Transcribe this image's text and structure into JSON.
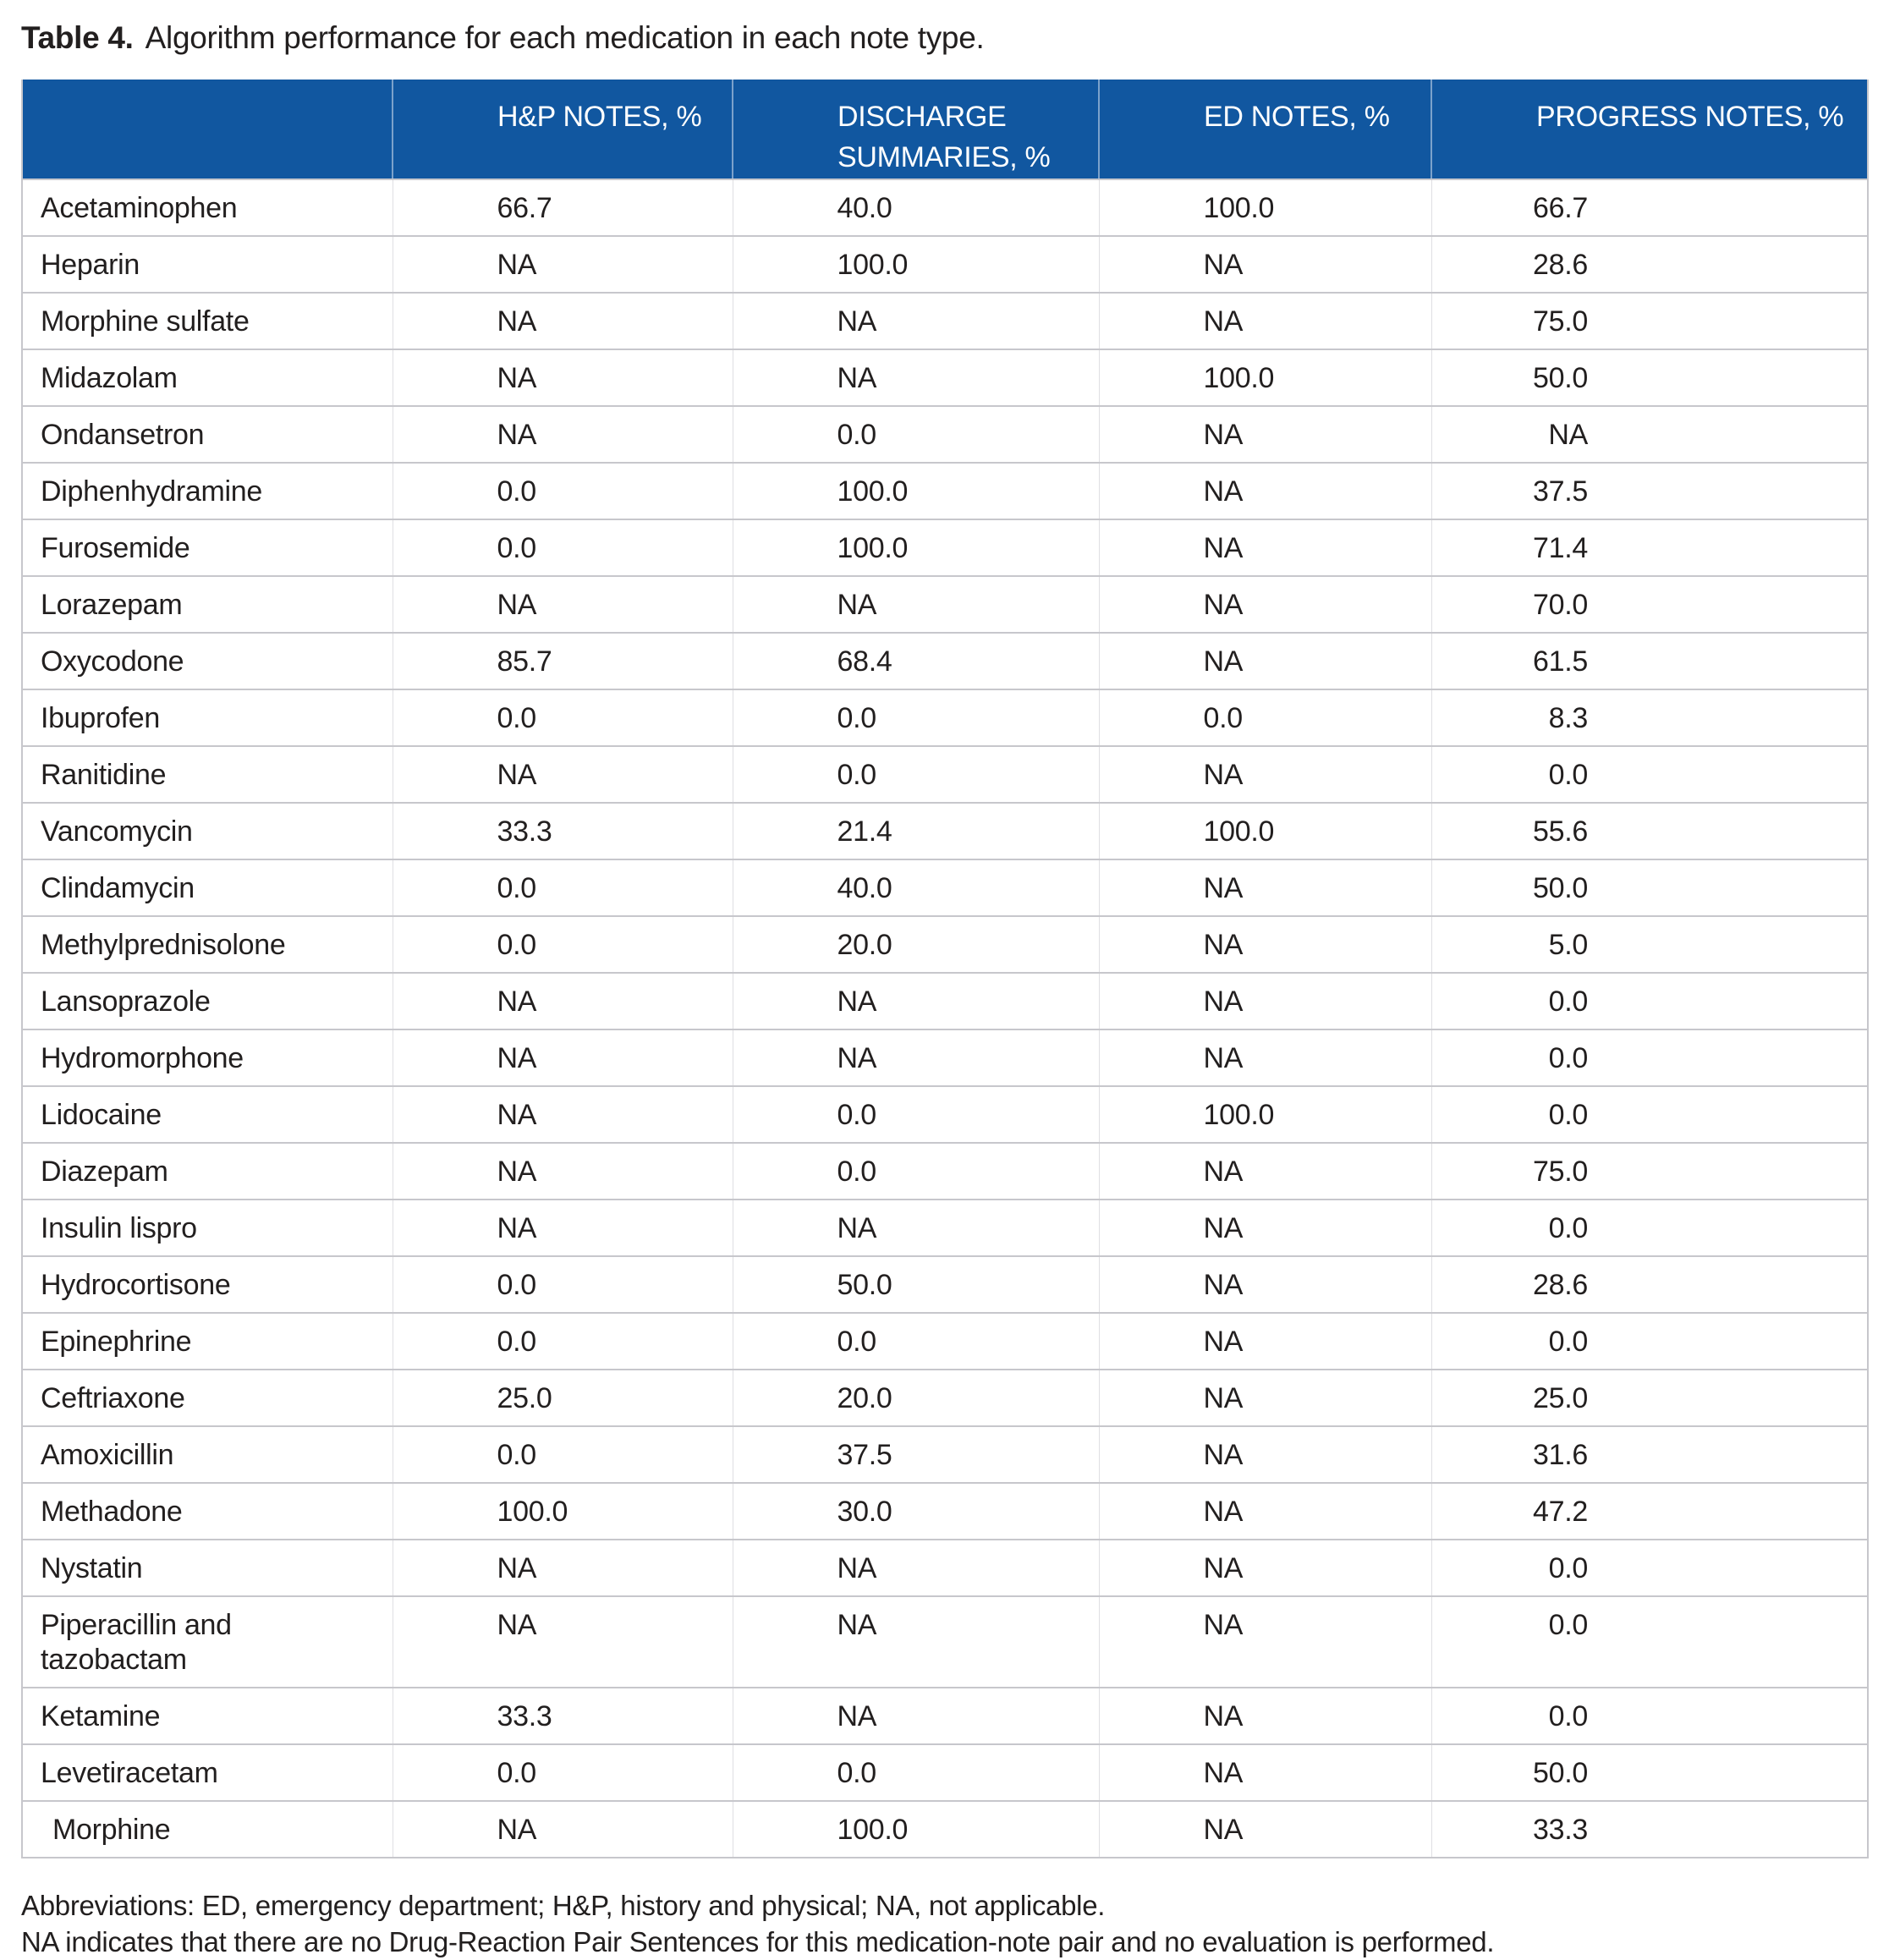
{
  "title": {
    "label": "Table 4.",
    "text": "Algorithm performance for each medication in each note type."
  },
  "colors": {
    "header_background": "#1157a0",
    "header_text": "#ffffff",
    "row_border": "#c7c7cc",
    "body_text": "#221f1f"
  },
  "table": {
    "columns": [
      "",
      "H&P NOTES, %",
      "DISCHARGE SUMMARIES, %",
      "ED NOTES, %",
      "PROGRESS NOTES, %"
    ],
    "rows": [
      {
        "med": "Acetaminophen",
        "hp": "66.7",
        "ds": "40.0",
        "ed": "100.0",
        "pn": "66.7"
      },
      {
        "med": "Heparin",
        "hp": "NA",
        "ds": "100.0",
        "ed": "NA",
        "pn": "28.6"
      },
      {
        "med": "Morphine sulfate",
        "hp": "NA",
        "ds": "NA",
        "ed": "NA",
        "pn": "75.0"
      },
      {
        "med": "Midazolam",
        "hp": "NA",
        "ds": "NA",
        "ed": "100.0",
        "pn": "50.0"
      },
      {
        "med": "Ondansetron",
        "hp": "NA",
        "ds": "0.0",
        "ed": "NA",
        "pn": "NA"
      },
      {
        "med": "Diphenhydramine",
        "hp": "0.0",
        "ds": "100.0",
        "ed": "NA",
        "pn": "37.5"
      },
      {
        "med": "Furosemide",
        "hp": "0.0",
        "ds": "100.0",
        "ed": "NA",
        "pn": "71.4"
      },
      {
        "med": "Lorazepam",
        "hp": "NA",
        "ds": "NA",
        "ed": "NA",
        "pn": "70.0"
      },
      {
        "med": "Oxycodone",
        "hp": "85.7",
        "ds": "68.4",
        "ed": "NA",
        "pn": "61.5"
      },
      {
        "med": "Ibuprofen",
        "hp": "0.0",
        "ds": "0.0",
        "ed": "0.0",
        "pn": "8.3"
      },
      {
        "med": "Ranitidine",
        "hp": "NA",
        "ds": "0.0",
        "ed": "NA",
        "pn": "0.0"
      },
      {
        "med": "Vancomycin",
        "hp": "33.3",
        "ds": "21.4",
        "ed": "100.0",
        "pn": "55.6"
      },
      {
        "med": "Clindamycin",
        "hp": "0.0",
        "ds": "40.0",
        "ed": "NA",
        "pn": "50.0"
      },
      {
        "med": "Methylprednisolone",
        "hp": "0.0",
        "ds": "20.0",
        "ed": "NA",
        "pn": "5.0"
      },
      {
        "med": "Lansoprazole",
        "hp": "NA",
        "ds": "NA",
        "ed": "NA",
        "pn": "0.0"
      },
      {
        "med": "Hydromorphone",
        "hp": "NA",
        "ds": "NA",
        "ed": "NA",
        "pn": "0.0"
      },
      {
        "med": "Lidocaine",
        "hp": "NA",
        "ds": "0.0",
        "ed": "100.0",
        "pn": "0.0"
      },
      {
        "med": "Diazepam",
        "hp": "NA",
        "ds": "0.0",
        "ed": "NA",
        "pn": "75.0"
      },
      {
        "med": "Insulin lispro",
        "hp": "NA",
        "ds": "NA",
        "ed": "NA",
        "pn": "0.0"
      },
      {
        "med": "Hydrocortisone",
        "hp": "0.0",
        "ds": "50.0",
        "ed": "NA",
        "pn": "28.6"
      },
      {
        "med": "Epinephrine",
        "hp": "0.0",
        "ds": "0.0",
        "ed": "NA",
        "pn": "0.0"
      },
      {
        "med": "Ceftriaxone",
        "hp": "25.0",
        "ds": "20.0",
        "ed": "NA",
        "pn": "25.0"
      },
      {
        "med": "Amoxicillin",
        "hp": "0.0",
        "ds": "37.5",
        "ed": "NA",
        "pn": "31.6"
      },
      {
        "med": "Methadone",
        "hp": "100.0",
        "ds": "30.0",
        "ed": "NA",
        "pn": "47.2"
      },
      {
        "med": "Nystatin",
        "hp": "NA",
        "ds": "NA",
        "ed": "NA",
        "pn": "0.0"
      },
      {
        "med": "Piperacillin and tazobactam",
        "hp": "NA",
        "ds": "NA",
        "ed": "NA",
        "pn": "0.0"
      },
      {
        "med": "Ketamine",
        "hp": "33.3",
        "ds": "NA",
        "ed": "NA",
        "pn": "0.0"
      },
      {
        "med": "Levetiracetam",
        "hp": "0.0",
        "ds": "0.0",
        "ed": "NA",
        "pn": "50.0"
      },
      {
        "med": "Morphine",
        "hp": "NA",
        "ds": "100.0",
        "ed": "NA",
        "pn": "33.3",
        "indent": true
      }
    ]
  },
  "footnotes": [
    "Abbreviations: ED, emergency department; H&P, history and physical; NA, not applicable.",
    "NA indicates that there are no Drug-Reaction Pair Sentences for this medication-note pair and no evaluation is performed."
  ]
}
